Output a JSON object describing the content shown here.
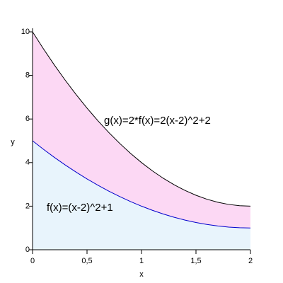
{
  "chart_data": {
    "type": "line",
    "x": [
      0,
      0.1,
      0.2,
      0.3,
      0.4,
      0.5,
      0.6,
      0.7,
      0.8,
      0.9,
      1,
      1.1,
      1.2,
      1.3,
      1.4,
      1.5,
      1.6,
      1.7,
      1.8,
      1.9,
      2
    ],
    "series": [
      {
        "name": "f(x)=(x-2)^2+1",
        "color": "#0000cc",
        "fill": "#e8f4fc",
        "values": [
          5,
          4.61,
          4.24,
          3.89,
          3.56,
          3.25,
          2.96,
          2.69,
          2.44,
          2.21,
          2,
          1.81,
          1.64,
          1.49,
          1.36,
          1.25,
          1.16,
          1.09,
          1.04,
          1.01,
          1
        ]
      },
      {
        "name": "g(x)=2*f(x)=2(x-2)^2+2",
        "color": "#000000",
        "fill": "#fcd8f4",
        "values": [
          10,
          9.22,
          8.48,
          7.78,
          7.12,
          6.5,
          5.92,
          5.38,
          4.88,
          4.42,
          4,
          3.62,
          3.28,
          2.98,
          2.72,
          2.5,
          2.32,
          2.18,
          2.08,
          2.02,
          2
        ]
      }
    ],
    "x_label": "x",
    "y_label": "y",
    "xlim": [
      0,
      2
    ],
    "ylim": [
      0,
      10
    ],
    "xticks": [
      0,
      {
        "value": 0.5,
        "label": "0,5"
      },
      1,
      {
        "value": 1.5,
        "label": "1,5"
      },
      2
    ],
    "yticks": [
      0,
      2,
      4,
      6,
      8,
      10
    ]
  }
}
